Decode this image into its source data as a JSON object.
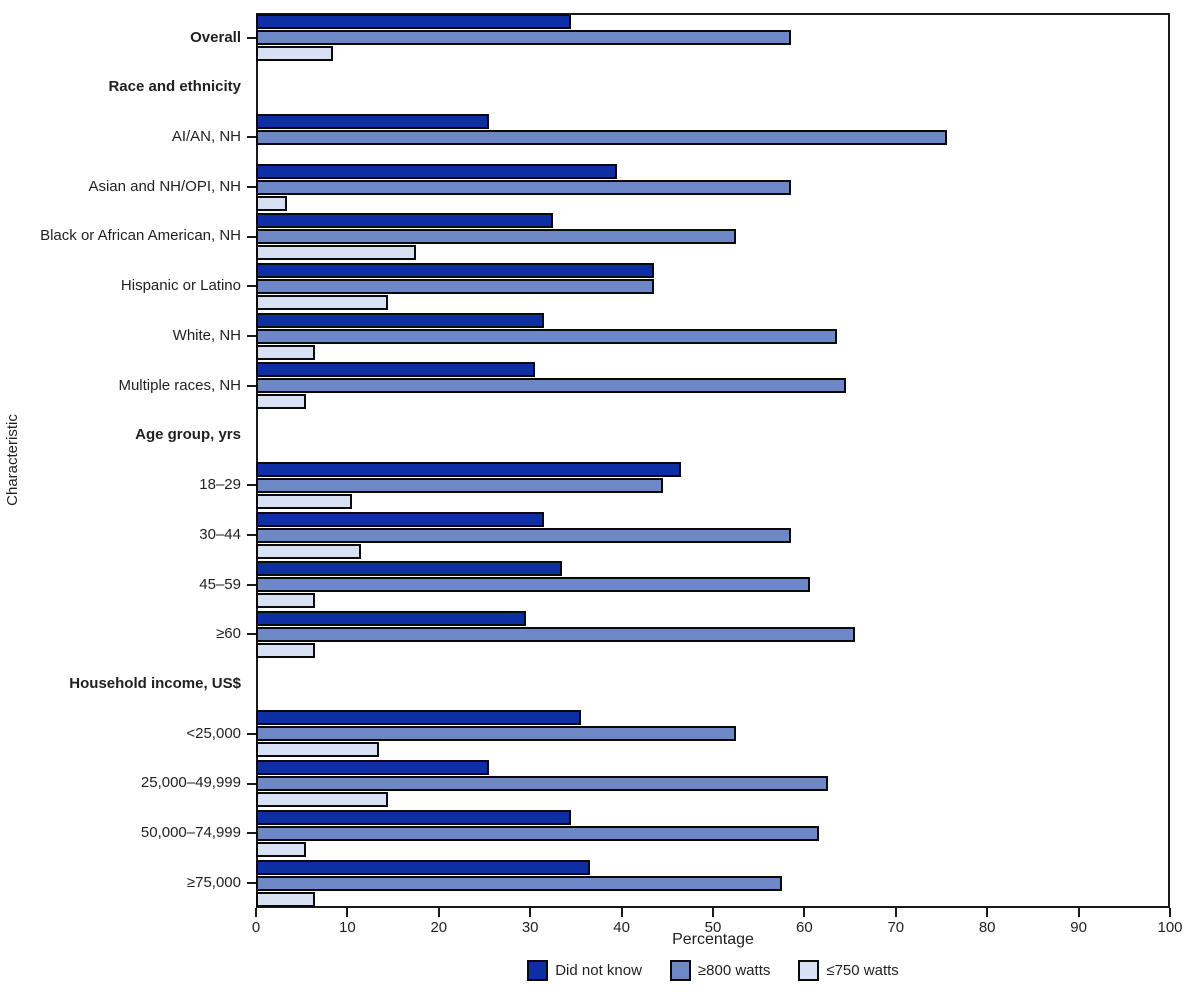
{
  "chart_data": {
    "type": "bar",
    "orientation": "horizontal",
    "title": "",
    "xlabel": "Percentage",
    "ylabel": "Characteristic",
    "xlim": [
      0,
      100
    ],
    "x_ticks": [
      "0",
      "10",
      "20",
      "30",
      "40",
      "50",
      "60",
      "70",
      "80",
      "90",
      "100"
    ],
    "grid": false,
    "legend_position": "bottom-center",
    "legend": [
      {
        "name": "Did not know",
        "key": "did-not-know",
        "color": "#0d2fa3"
      },
      {
        "name": "≥800 watts",
        "key": "ge-800-watts",
        "color": "#6e87c6"
      },
      {
        "name": "≤750 watts",
        "key": "le-750-watts",
        "color": "#d8e0f3"
      }
    ],
    "rows": [
      {
        "label": "Overall",
        "header": false,
        "bold": true,
        "values": [
          34,
          58,
          8
        ]
      },
      {
        "label": "Race and ethnicity",
        "header": true,
        "bold": true,
        "values": null
      },
      {
        "label": "AI/AN, NH",
        "header": false,
        "bold": false,
        "values": [
          25,
          75,
          null
        ]
      },
      {
        "label": "Asian and NH/OPI, NH",
        "header": false,
        "bold": false,
        "values": [
          39,
          58,
          3
        ]
      },
      {
        "label": "Black or African American, NH",
        "header": false,
        "bold": false,
        "values": [
          32,
          52,
          17
        ]
      },
      {
        "label": "Hispanic or Latino",
        "header": false,
        "bold": false,
        "values": [
          43,
          43,
          14
        ]
      },
      {
        "label": "White, NH",
        "header": false,
        "bold": false,
        "values": [
          31,
          63,
          6
        ]
      },
      {
        "label": "Multiple races, NH",
        "header": false,
        "bold": false,
        "values": [
          30,
          64,
          5
        ]
      },
      {
        "label": "Age group, yrs",
        "header": true,
        "bold": true,
        "values": null
      },
      {
        "label": "18–29",
        "header": false,
        "bold": false,
        "values": [
          46,
          44,
          10
        ]
      },
      {
        "label": "30–44",
        "header": false,
        "bold": false,
        "values": [
          31,
          58,
          11
        ]
      },
      {
        "label": "45–59",
        "header": false,
        "bold": false,
        "values": [
          33,
          60,
          6
        ]
      },
      {
        "label": "≥60",
        "header": false,
        "bold": false,
        "values": [
          29,
          65,
          6
        ]
      },
      {
        "label": "Household income, US$",
        "header": true,
        "bold": true,
        "values": null
      },
      {
        "label": "<25,000",
        "header": false,
        "bold": false,
        "values": [
          35,
          52,
          13
        ]
      },
      {
        "label": "25,000–49,999",
        "header": false,
        "bold": false,
        "values": [
          25,
          62,
          14
        ]
      },
      {
        "label": "50,000–74,999",
        "header": false,
        "bold": false,
        "values": [
          34,
          61,
          5
        ]
      },
      {
        "label": "≥75,000",
        "header": false,
        "bold": false,
        "values": [
          36,
          57,
          6
        ]
      }
    ],
    "colors": {
      "axis": "#1a1a1a",
      "bar_border": "#0a0a0a",
      "text": "#231f20"
    }
  }
}
